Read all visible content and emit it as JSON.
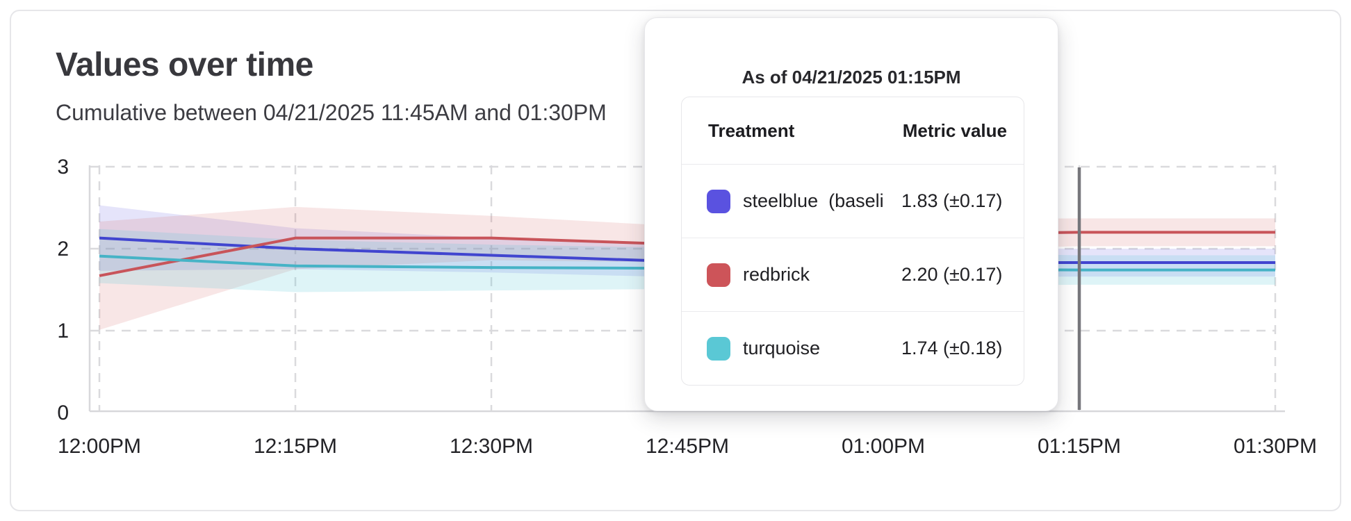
{
  "card": {
    "title": "Values over time",
    "subtitle": "Cumulative between 04/21/2025 11:45AM and 01:30PM"
  },
  "chart_data": {
    "type": "line",
    "title": "Values over time",
    "subtitle": "Cumulative between 04/21/2025 11:45AM and 01:30PM",
    "x_ticks": [
      "12:00PM",
      "12:15PM",
      "12:30PM",
      "12:45PM",
      "01:00PM",
      "01:15PM",
      "01:30PM"
    ],
    "y_ticks": [
      "0",
      "1",
      "2",
      "3"
    ],
    "ylim": [
      0,
      3
    ],
    "grid": "dashed",
    "legend_position": "none",
    "crosshair_x": "01:15PM",
    "series": [
      {
        "key": "steelblue",
        "name": "steelblue (baseline)",
        "color": "#4145cf",
        "band_color": "rgba(93,88,224,0.16)",
        "values": [
          2.13,
          2.0,
          1.92,
          1.84,
          1.83,
          1.83,
          1.83
        ],
        "band_delta": [
          0.4,
          0.25,
          0.21,
          0.19,
          0.18,
          0.17,
          0.17
        ]
      },
      {
        "key": "redbrick",
        "name": "redbrick",
        "color": "#c8545a",
        "band_color": "rgba(205,84,90,0.15)",
        "values": [
          1.67,
          2.13,
          2.13,
          2.05,
          2.17,
          2.2,
          2.2
        ],
        "band_delta": [
          0.66,
          0.38,
          0.27,
          0.22,
          0.19,
          0.17,
          0.17
        ]
      },
      {
        "key": "turquoise",
        "name": "turquoise",
        "color": "#46b3c6",
        "band_color": "rgba(88,200,213,0.20)",
        "values": [
          1.91,
          1.79,
          1.77,
          1.76,
          1.75,
          1.74,
          1.74
        ],
        "band_delta": [
          0.33,
          0.32,
          0.28,
          0.25,
          0.21,
          0.18,
          0.18
        ]
      }
    ]
  },
  "tooltip": {
    "title": "As of 04/21/2025 01:15PM",
    "columns": [
      "Treatment",
      "Metric value"
    ],
    "rows": [
      {
        "label": "steelblue  (baseli",
        "swatch": "#5a52e0",
        "value": "1.83 (±0.17)"
      },
      {
        "label": "redbrick",
        "swatch": "#cd5459",
        "value": "2.20 (±0.17)"
      },
      {
        "label": "turquoise",
        "swatch": "#5ac8d5",
        "value": "1.74 (±0.18)"
      }
    ]
  },
  "colors": {
    "grid": "#dadadd",
    "axis": "#d8d8db",
    "crosshair": "#76767b",
    "tick_label": "#222226"
  }
}
